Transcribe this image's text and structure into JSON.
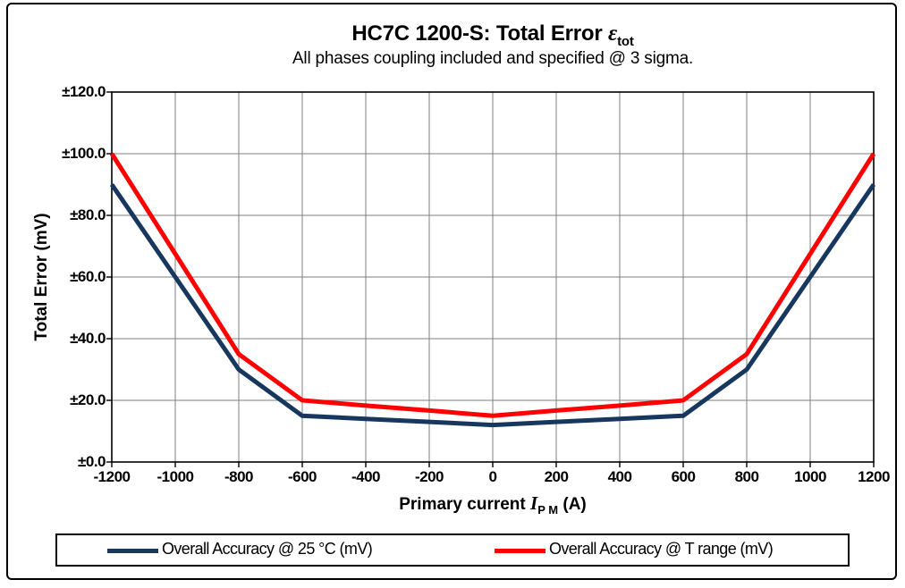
{
  "chart_data": {
    "type": "line",
    "title_main": "HC7C 1200-S: Total Error ",
    "title_symbol": "ε",
    "title_subscript": "tot",
    "subtitle": "All phases coupling included and specified @ 3 sigma.",
    "ylabel": "Total Error (mV)",
    "xlabel_prefix": "Primary current ",
    "xlabel_symbol": "I",
    "xlabel_subscript": "P M",
    "xlabel_suffix": " (A)",
    "x": [
      -1200,
      -1000,
      -800,
      -600,
      -400,
      -200,
      0,
      200,
      400,
      600,
      800,
      1000,
      1200
    ],
    "series": [
      {
        "name": "Overall Accuracy @ 25 °C (mV)",
        "color": "#17375E",
        "values": [
          90,
          60,
          30,
          15,
          14,
          13,
          12,
          13,
          14,
          15,
          30,
          60,
          90
        ]
      },
      {
        "name": "Overall Accuracy @ T range (mV)",
        "color": "#FF0000",
        "values": [
          100,
          67.5,
          35,
          20,
          18.3,
          16.7,
          15,
          16.7,
          18.3,
          20,
          35,
          67.5,
          100
        ]
      }
    ],
    "xlim": [
      -1200,
      1200
    ],
    "ylim": [
      0,
      120
    ],
    "x_tick_labels": [
      "-1200",
      "-1000",
      "-800",
      "-600",
      "-400",
      "-200",
      "0",
      "200",
      "400",
      "600",
      "800",
      "1000",
      "1200"
    ],
    "y_tick_labels": [
      "±0.0",
      "±20.0",
      "±40.0",
      "±60.0",
      "±80.0",
      "±100.0",
      "±120.0"
    ],
    "grid": "on",
    "legend_position": "bottom",
    "grid_color": "#7f7f7f",
    "border_color": "#000000"
  },
  "legend": {
    "entries": [
      {
        "label": "Overall Accuracy @ 25 °C (mV)"
      },
      {
        "label": "Overall Accuracy @ T range (mV)"
      }
    ]
  }
}
